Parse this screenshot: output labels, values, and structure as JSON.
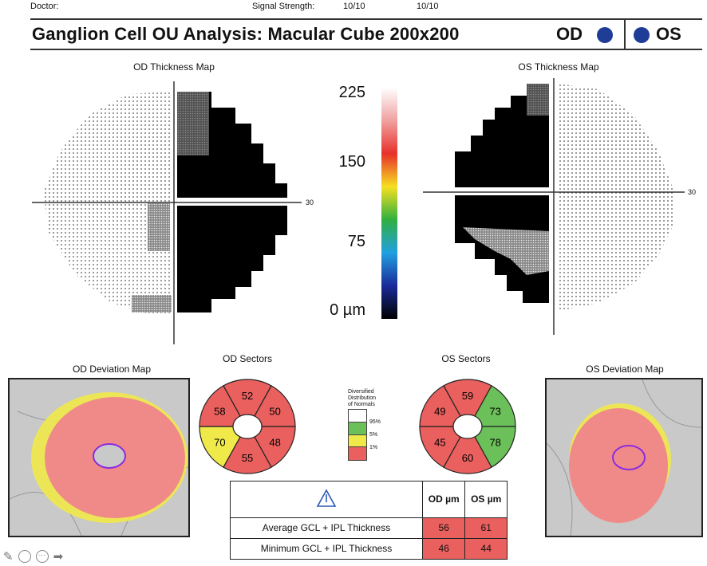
{
  "header": {
    "doctor_label": "Doctor:",
    "signal_strength_label": "Signal Strength:",
    "signal_od": "10/10",
    "signal_os": "10/10"
  },
  "title": {
    "text": "Ganglion Cell OU Analysis: Macular Cube 200x200",
    "od_label": "OD",
    "os_label": "OS",
    "eye_dot_color": "#1f3c96"
  },
  "thickness_maps": {
    "od_title": "OD Thickness Map",
    "os_title": "OS Thickness Map",
    "axis_label_od": "30",
    "axis_label_os": "30"
  },
  "color_scale": {
    "ticks": [
      "225",
      "150",
      "75",
      "0 µm"
    ],
    "colors": [
      "#ffffff",
      "#f0a0a0",
      "#e8302a",
      "#f5e020",
      "#30b040",
      "#20a0e0",
      "#1a2a9a",
      "#000000"
    ]
  },
  "deviation_maps": {
    "od_title": "OD Deviation Map",
    "os_title": "OS Deviation Map"
  },
  "sectors": {
    "od_title": "OD Sectors",
    "os_title": "OS Sectors",
    "order": [
      "top",
      "upper-right",
      "lower-right",
      "bottom",
      "lower-left",
      "upper-left"
    ],
    "od": [
      {
        "value": "52",
        "status": "1%"
      },
      {
        "value": "50",
        "status": "1%"
      },
      {
        "value": "48",
        "status": "1%"
      },
      {
        "value": "55",
        "status": "1%"
      },
      {
        "value": "70",
        "status": "5%"
      },
      {
        "value": "58",
        "status": "1%"
      }
    ],
    "os": [
      {
        "value": "59",
        "status": "1%"
      },
      {
        "value": "73",
        "status": "95%"
      },
      {
        "value": "78",
        "status": "95%"
      },
      {
        "value": "60",
        "status": "1%"
      },
      {
        "value": "45",
        "status": "1%"
      },
      {
        "value": "49",
        "status": "1%"
      }
    ],
    "status_colors": {
      "95%": "#6cc05a",
      "5%": "#f0e94a",
      "1%": "#e9605e"
    }
  },
  "legend": {
    "title_lines": [
      "Diversified",
      "Distribution",
      "of Normals"
    ],
    "levels": [
      {
        "label": "95%",
        "color": "#ffffff"
      },
      {
        "label": "5%",
        "color": "#6cc05a"
      },
      {
        "label": "1%",
        "color": "#f0e94a"
      },
      {
        "label": "",
        "color": "#e9605e"
      }
    ]
  },
  "results_table": {
    "warning_icon": "warning-triangle-icon",
    "headers": [
      "OD µm",
      "OS µm"
    ],
    "rows": [
      {
        "label": "Average GCL + IPL Thickness",
        "od": "56",
        "os": "61"
      },
      {
        "label": "Minimum GCL + IPL Thickness",
        "od": "46",
        "os": "44"
      }
    ],
    "abnormal_color": "#e9605e"
  },
  "toolbar": {
    "icons": [
      "pencil-icon",
      "comment-icon",
      "more-icon",
      "forward-arrow-icon"
    ]
  }
}
